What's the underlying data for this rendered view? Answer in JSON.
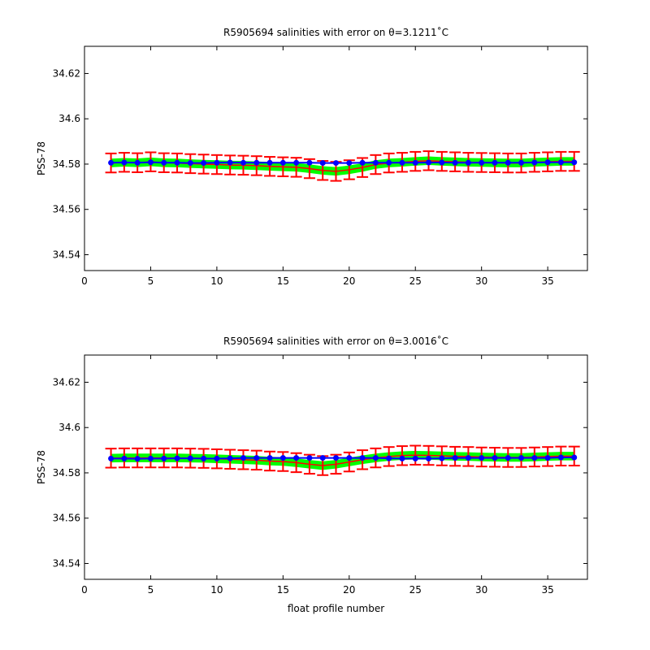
{
  "chart_data": [
    {
      "type": "line",
      "title": "R5905694 salinities with error on θ=3.1211˚C",
      "xlabel": "",
      "ylabel": "PSS-78",
      "xlim": [
        0,
        38
      ],
      "ylim": [
        34.533,
        34.632
      ],
      "xticks": [
        0,
        5,
        10,
        15,
        20,
        25,
        30,
        35
      ],
      "yticks": [
        34.54,
        34.56,
        34.58,
        34.6,
        34.62
      ],
      "ytick_labels": [
        "34.54",
        "34.56",
        "34.58",
        "34.6",
        "34.62"
      ],
      "x": [
        2,
        3,
        4,
        5,
        6,
        7,
        8,
        9,
        10,
        11,
        12,
        13,
        14,
        15,
        16,
        17,
        18,
        19,
        20,
        21,
        22,
        23,
        24,
        25,
        26,
        27,
        28,
        29,
        30,
        31,
        32,
        33,
        34,
        35,
        36,
        37
      ],
      "series": [
        {
          "role": "mapped salinity (red, with error bars and green error band)",
          "color": "#ff0000",
          "values": [
            34.5805,
            34.5808,
            34.5806,
            34.581,
            34.5806,
            34.5805,
            34.5802,
            34.58,
            34.5798,
            34.5796,
            34.5795,
            34.5793,
            34.579,
            34.5788,
            34.5786,
            34.578,
            34.5772,
            34.5768,
            34.5775,
            34.5785,
            34.5798,
            34.5805,
            34.5808,
            34.5812,
            34.5815,
            34.5812,
            34.581,
            34.5808,
            34.5807,
            34.5806,
            34.5805,
            34.5805,
            34.5808,
            34.581,
            34.5812,
            34.5812
          ],
          "errors": [
            0.0042,
            0.0042,
            0.0042,
            0.0042,
            0.0042,
            0.0042,
            0.0042,
            0.0042,
            0.0042,
            0.0042,
            0.0042,
            0.0042,
            0.0042,
            0.0042,
            0.0042,
            0.0042,
            0.0042,
            0.0042,
            0.0042,
            0.0042,
            0.0042,
            0.0042,
            0.0042,
            0.0042,
            0.0042,
            0.0042,
            0.0042,
            0.0042,
            0.0042,
            0.0042,
            0.0042,
            0.0042,
            0.0042,
            0.0042,
            0.0042,
            0.0042
          ]
        },
        {
          "role": "float salinity (blue with markers)",
          "color": "#0000ff",
          "values": [
            34.5806,
            34.5807,
            34.5806,
            34.5808,
            34.5806,
            34.5806,
            34.5805,
            34.5805,
            34.5806,
            34.5807,
            34.5806,
            34.5806,
            34.5806,
            34.5806,
            34.5806,
            34.5806,
            34.5805,
            34.5805,
            34.5805,
            34.5806,
            34.5806,
            34.5806,
            34.5806,
            34.5806,
            34.5807,
            34.5807,
            34.5806,
            34.5806,
            34.5806,
            34.5806,
            34.5806,
            34.5806,
            34.5807,
            34.5808,
            34.5808,
            34.5808
          ]
        }
      ],
      "band_color": "#00ff00",
      "grid": false
    },
    {
      "type": "line",
      "title": "R5905694 salinities with error on θ=3.0016˚C",
      "xlabel": "float profile number",
      "ylabel": "PSS-78",
      "xlim": [
        0,
        38
      ],
      "ylim": [
        34.533,
        34.632
      ],
      "xticks": [
        0,
        5,
        10,
        15,
        20,
        25,
        30,
        35
      ],
      "yticks": [
        34.54,
        34.56,
        34.58,
        34.6,
        34.62
      ],
      "ytick_labels": [
        "34.54",
        "34.56",
        "34.58",
        "34.6",
        "34.62"
      ],
      "x": [
        2,
        3,
        4,
        5,
        6,
        7,
        8,
        9,
        10,
        11,
        12,
        13,
        14,
        15,
        16,
        17,
        18,
        19,
        20,
        21,
        22,
        23,
        24,
        25,
        26,
        27,
        28,
        29,
        30,
        31,
        32,
        33,
        34,
        35,
        36,
        37
      ],
      "series": [
        {
          "role": "mapped salinity (red, with error bars and green error band)",
          "color": "#ff0000",
          "values": [
            34.5865,
            34.5866,
            34.5866,
            34.5866,
            34.5866,
            34.5866,
            34.5865,
            34.5864,
            34.5862,
            34.586,
            34.5858,
            34.5856,
            34.5852,
            34.585,
            34.5845,
            34.5838,
            34.5832,
            34.5838,
            34.5848,
            34.5858,
            34.5866,
            34.5872,
            34.5876,
            34.5878,
            34.5877,
            34.5875,
            34.5873,
            34.5872,
            34.587,
            34.5869,
            34.5868,
            34.5868,
            34.587,
            34.5872,
            34.5874,
            34.5874
          ],
          "errors": [
            0.0042,
            0.0042,
            0.0042,
            0.0042,
            0.0042,
            0.0042,
            0.0042,
            0.0042,
            0.0042,
            0.0042,
            0.0042,
            0.0042,
            0.0042,
            0.0042,
            0.0042,
            0.0042,
            0.0042,
            0.0042,
            0.0042,
            0.0042,
            0.0042,
            0.0042,
            0.0042,
            0.0042,
            0.0042,
            0.0042,
            0.0042,
            0.0042,
            0.0042,
            0.0042,
            0.0042,
            0.0042,
            0.0042,
            0.0042,
            0.0042,
            0.0042
          ]
        },
        {
          "role": "float salinity (blue with markers)",
          "color": "#0000ff",
          "values": [
            34.5863,
            34.5863,
            34.5862,
            34.5863,
            34.5863,
            34.5864,
            34.5864,
            34.5863,
            34.5863,
            34.5864,
            34.5866,
            34.5866,
            34.5866,
            34.5866,
            34.5866,
            34.5866,
            34.5866,
            34.5866,
            34.5866,
            34.5866,
            34.5866,
            34.5864,
            34.5863,
            34.5863,
            34.5863,
            34.5864,
            34.5866,
            34.5866,
            34.5866,
            34.5866,
            34.5866,
            34.5866,
            34.5866,
            34.5866,
            34.5868,
            34.5868
          ]
        }
      ],
      "band_color": "#00ff00",
      "grid": false
    }
  ]
}
